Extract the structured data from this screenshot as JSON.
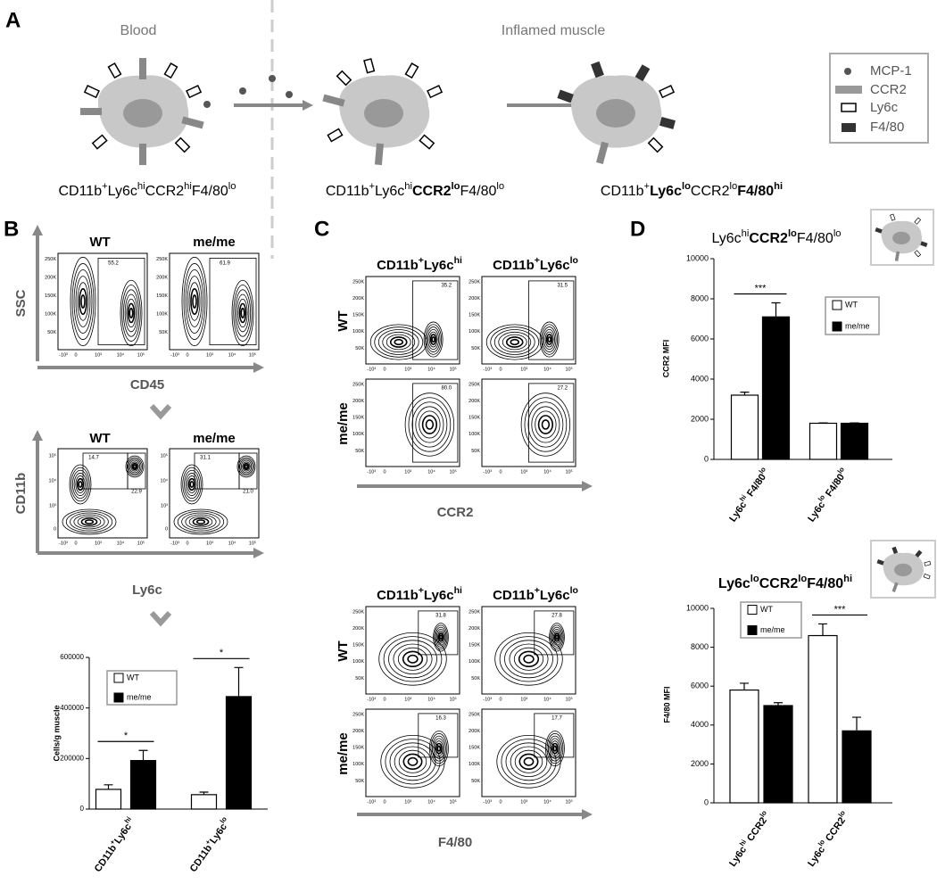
{
  "panel_a": {
    "label": "A",
    "blood": "Blood",
    "inflamed": "Inflamed muscle",
    "cells": [
      [
        [
          "CD11b",
          "n"
        ],
        [
          "+",
          "s"
        ],
        [
          "Ly6c",
          "n"
        ],
        [
          "hi",
          "s"
        ],
        [
          "CCR2",
          "n"
        ],
        [
          "hi",
          "s"
        ],
        [
          "F4/80",
          "n"
        ],
        [
          "lo",
          "s"
        ]
      ],
      [
        [
          "CD11b",
          "n"
        ],
        [
          "+",
          "s"
        ],
        [
          "Ly6c",
          "n"
        ],
        [
          "hi",
          "s"
        ],
        [
          "CCR2",
          "b"
        ],
        [
          "lo",
          "bs"
        ],
        [
          "F4/80",
          "n"
        ],
        [
          "lo",
          "s"
        ]
      ],
      [
        [
          "CD11b",
          "n"
        ],
        [
          "+",
          "s"
        ],
        [
          "Ly6c",
          "b"
        ],
        [
          "lo",
          "bs"
        ],
        [
          "CCR2",
          "n"
        ],
        [
          "lo",
          "s"
        ],
        [
          "F4/80",
          "b"
        ],
        [
          "hi",
          "bs"
        ]
      ]
    ],
    "legend": [
      "MCP-1",
      "CCR2",
      "Ly6c",
      "F4/80"
    ]
  },
  "flow_ticks": {
    "linear": [
      "50K",
      "100K",
      "150K",
      "200K",
      "250K"
    ],
    "log": [
      "-10³",
      "0",
      "10³",
      "10⁴",
      "10⁵"
    ]
  },
  "panel_b": {
    "label": "B",
    "scatter": {
      "titles": [
        "WT",
        "me/me"
      ],
      "gates": [
        [
          "55.2"
        ],
        [
          "61.9"
        ]
      ],
      "y_axis": "SSC",
      "x_axis": "CD45"
    },
    "myeloid": {
      "titles": [
        "WT",
        "me/me"
      ],
      "gates": [
        [
          "14.7",
          "22.9"
        ],
        [
          "31.1",
          "21.0"
        ]
      ],
      "y_axis": "CD11b",
      "x_axis": "Ly6c"
    }
  },
  "panel_c": {
    "label": "C",
    "columns": [
      [
        [
          "CD11b",
          "b"
        ],
        [
          "+",
          "bs"
        ],
        [
          "Ly6c",
          "b"
        ],
        [
          "hi",
          "bs"
        ]
      ],
      [
        [
          "CD11b",
          "b"
        ],
        [
          "+",
          "bs"
        ],
        [
          "Ly6c",
          "b"
        ],
        [
          "lo",
          "bs"
        ]
      ]
    ],
    "rows": [
      "WT",
      "me/me"
    ],
    "ccr2": {
      "gates": [
        [
          "35.2",
          "31.5"
        ],
        [
          "80.0",
          "27.2"
        ]
      ],
      "x_axis": "CCR2"
    },
    "f480": {
      "gates": [
        [
          "31.8",
          "27.8"
        ],
        [
          "16.3",
          "17.7"
        ]
      ],
      "x_axis": "F4/80"
    }
  },
  "panel_d": {
    "label": "D"
  },
  "chart_data": [
    {
      "type": "bar",
      "y_label": "Cells/g muscle",
      "categories": [
        [
          [
            "CD11b",
            "b"
          ],
          [
            "+",
            "bs"
          ],
          [
            "Ly6c",
            "b"
          ],
          [
            "hi",
            "bs"
          ]
        ],
        [
          [
            "CD11b",
            "b"
          ],
          [
            "+",
            "bs"
          ],
          [
            "Ly6c",
            "b"
          ],
          [
            "lo",
            "bs"
          ]
        ]
      ],
      "series": [
        {
          "name": "WT",
          "color": "#ffffff",
          "values": [
            78000,
            57000
          ],
          "errors": [
            18000,
            10000
          ]
        },
        {
          "name": "me/me",
          "color": "#000000",
          "values": [
            192000,
            445000
          ],
          "errors": [
            40000,
            115000
          ]
        }
      ],
      "significance": [
        "*",
        "*"
      ],
      "ylim": [
        0,
        600000
      ],
      "yticks": [
        0,
        200000,
        400000,
        600000
      ]
    },
    {
      "type": "bar",
      "title": [
        [
          "Ly6c",
          "n"
        ],
        [
          "hi",
          "s"
        ],
        [
          "CCR2",
          "b"
        ],
        [
          "lo",
          "bs"
        ],
        [
          "F4/80",
          "n"
        ],
        [
          "lo",
          "s"
        ]
      ],
      "y_label": "CCR2 MFI",
      "categories": [
        [
          [
            "Ly6c",
            "b"
          ],
          [
            "hi",
            "bs"
          ],
          [
            " F4/80",
            "b"
          ],
          [
            "lo",
            "bs"
          ]
        ],
        [
          [
            "Ly6c",
            "b"
          ],
          [
            "lo",
            "bs"
          ],
          [
            " F4/80",
            "b"
          ],
          [
            "lo",
            "bs"
          ]
        ]
      ],
      "series": [
        {
          "name": "WT",
          "color": "#ffffff",
          "values": [
            3200,
            1800
          ],
          "errors": [
            150,
            20
          ]
        },
        {
          "name": "me/me",
          "color": "#000000",
          "values": [
            7100,
            1800
          ],
          "errors": [
            700,
            20
          ]
        }
      ],
      "significance": [
        "***",
        null
      ],
      "ylim": [
        0,
        10000
      ],
      "yticks": [
        0,
        2000,
        4000,
        6000,
        8000,
        10000
      ]
    },
    {
      "type": "bar",
      "title": [
        [
          "Ly6c",
          "b"
        ],
        [
          "lo",
          "bs"
        ],
        [
          "CCR2",
          "b"
        ],
        [
          "lo",
          "bs"
        ],
        [
          "F4/80",
          "b"
        ],
        [
          "hi",
          "bs"
        ]
      ],
      "y_label": "F4/80 MFI",
      "categories": [
        [
          [
            "Ly6c",
            "b"
          ],
          [
            "hi",
            "bs"
          ],
          [
            " CCR2",
            "b"
          ],
          [
            "lo",
            "bs"
          ]
        ],
        [
          [
            "Ly6c",
            "b"
          ],
          [
            "lo",
            "bs"
          ],
          [
            " CCR2",
            "b"
          ],
          [
            "lo",
            "bs"
          ]
        ]
      ],
      "series": [
        {
          "name": "WT",
          "color": "#ffffff",
          "values": [
            5800,
            8600
          ],
          "errors": [
            350,
            600
          ]
        },
        {
          "name": "me/me",
          "color": "#000000",
          "values": [
            5000,
            3700
          ],
          "errors": [
            150,
            700
          ]
        }
      ],
      "significance": [
        null,
        "***"
      ],
      "ylim": [
        0,
        10000
      ],
      "yticks": [
        0,
        2000,
        4000,
        6000,
        8000,
        10000
      ]
    }
  ]
}
